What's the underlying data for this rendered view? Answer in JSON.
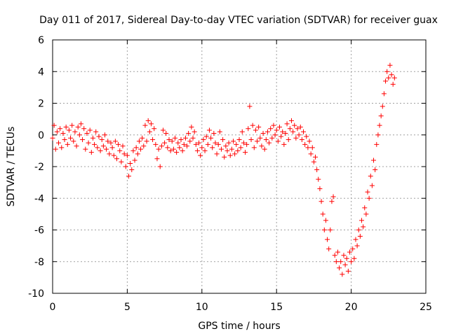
{
  "chart_data": {
    "type": "scatter",
    "title": "Day 011 of 2017, Sidereal Day-to-day VTEC variation (SDTVAR) for receiver guax",
    "xlabel": "GPS time / hours",
    "ylabel": "SDTVAR / TECUs",
    "xlim": [
      0,
      25
    ],
    "ylim": [
      -10,
      6
    ],
    "xticks": [
      "0",
      "5",
      "10",
      "15",
      "20",
      "25"
    ],
    "yticks": [
      "-10",
      "-8",
      "-6",
      "-4",
      "-2",
      "0",
      "2",
      "4",
      "6"
    ],
    "grid": true,
    "marker": "+",
    "color": "#ff0000",
    "series": [
      {
        "name": "SDTVAR",
        "points": [
          [
            0.0,
            -0.2
          ],
          [
            0.1,
            0.6
          ],
          [
            0.2,
            -0.9
          ],
          [
            0.3,
            0.2
          ],
          [
            0.4,
            -0.5
          ],
          [
            0.5,
            0.4
          ],
          [
            0.6,
            -0.8
          ],
          [
            0.7,
            0.1
          ],
          [
            0.8,
            -0.3
          ],
          [
            0.9,
            0.5
          ],
          [
            1.0,
            -0.6
          ],
          [
            1.1,
            0.3
          ],
          [
            1.2,
            -0.2
          ],
          [
            1.3,
            0.6
          ],
          [
            1.4,
            -0.4
          ],
          [
            1.5,
            0.2
          ],
          [
            1.6,
            -0.7
          ],
          [
            1.7,
            0.5
          ],
          [
            1.8,
            0.0
          ],
          [
            1.9,
            0.7
          ],
          [
            2.0,
            -0.3
          ],
          [
            2.1,
            0.4
          ],
          [
            2.2,
            -0.9
          ],
          [
            2.3,
            0.1
          ],
          [
            2.4,
            -0.5
          ],
          [
            2.5,
            0.3
          ],
          [
            2.6,
            -1.1
          ],
          [
            2.7,
            -0.2
          ],
          [
            2.8,
            -0.6
          ],
          [
            2.9,
            0.2
          ],
          [
            3.0,
            -0.8
          ],
          [
            3.1,
            -0.1
          ],
          [
            3.2,
            -1.0
          ],
          [
            3.3,
            -0.3
          ],
          [
            3.4,
            -0.7
          ],
          [
            3.5,
            0.0
          ],
          [
            3.6,
            -0.9
          ],
          [
            3.7,
            -0.4
          ],
          [
            3.8,
            -1.2
          ],
          [
            3.9,
            -0.5
          ],
          [
            4.0,
            -0.8
          ],
          [
            4.1,
            -1.3
          ],
          [
            4.2,
            -0.4
          ],
          [
            4.3,
            -1.5
          ],
          [
            4.4,
            -0.6
          ],
          [
            4.5,
            -1.0
          ],
          [
            4.6,
            -1.7
          ],
          [
            4.7,
            -0.7
          ],
          [
            4.8,
            -1.2
          ],
          [
            4.9,
            -2.0
          ],
          [
            5.0,
            -1.3
          ],
          [
            5.1,
            -2.6
          ],
          [
            5.2,
            -1.8
          ],
          [
            5.3,
            -2.2
          ],
          [
            5.4,
            -1.0
          ],
          [
            5.5,
            -1.6
          ],
          [
            5.6,
            -0.8
          ],
          [
            5.7,
            -1.2
          ],
          [
            5.8,
            -0.4
          ],
          [
            5.9,
            -0.9
          ],
          [
            6.0,
            -0.2
          ],
          [
            6.1,
            -0.7
          ],
          [
            6.2,
            0.6
          ],
          [
            6.3,
            -0.4
          ],
          [
            6.4,
            0.9
          ],
          [
            6.5,
            0.2
          ],
          [
            6.6,
            0.7
          ],
          [
            6.7,
            -0.3
          ],
          [
            6.8,
            0.4
          ],
          [
            6.9,
            -0.6
          ],
          [
            7.0,
            -1.5
          ],
          [
            7.1,
            -0.9
          ],
          [
            7.2,
            -2.0
          ],
          [
            7.3,
            -0.7
          ],
          [
            7.4,
            0.3
          ],
          [
            7.5,
            -0.5
          ],
          [
            7.6,
            0.1
          ],
          [
            7.7,
            -0.8
          ],
          [
            7.8,
            -0.3
          ],
          [
            7.9,
            -1.0
          ],
          [
            8.0,
            -0.4
          ],
          [
            8.1,
            -0.9
          ],
          [
            8.2,
            -0.2
          ],
          [
            8.3,
            -1.1
          ],
          [
            8.4,
            -0.5
          ],
          [
            8.5,
            -0.8
          ],
          [
            8.6,
            -0.3
          ],
          [
            8.7,
            -1.0
          ],
          [
            8.8,
            -0.6
          ],
          [
            8.9,
            -0.2
          ],
          [
            9.0,
            -0.7
          ],
          [
            9.1,
            0.1
          ],
          [
            9.2,
            -0.4
          ],
          [
            9.3,
            0.5
          ],
          [
            9.4,
            -0.2
          ],
          [
            9.5,
            0.2
          ],
          [
            9.6,
            -0.6
          ],
          [
            9.7,
            -1.0
          ],
          [
            9.8,
            -0.5
          ],
          [
            9.9,
            -1.3
          ],
          [
            10.0,
            -0.8
          ],
          [
            10.1,
            -0.3
          ],
          [
            10.2,
            -1.0
          ],
          [
            10.3,
            -0.1
          ],
          [
            10.4,
            -0.6
          ],
          [
            10.5,
            0.3
          ],
          [
            10.6,
            -0.2
          ],
          [
            10.7,
            -0.8
          ],
          [
            10.8,
            0.1
          ],
          [
            10.9,
            -0.5
          ],
          [
            11.0,
            -1.2
          ],
          [
            11.1,
            -0.6
          ],
          [
            11.2,
            0.2
          ],
          [
            11.3,
            -0.9
          ],
          [
            11.4,
            -0.3
          ],
          [
            11.5,
            -1.4
          ],
          [
            11.6,
            -0.7
          ],
          [
            11.7,
            -1.0
          ],
          [
            11.8,
            -0.5
          ],
          [
            11.9,
            -1.3
          ],
          [
            12.0,
            -0.9
          ],
          [
            12.1,
            -0.4
          ],
          [
            12.2,
            -1.2
          ],
          [
            12.3,
            -0.6
          ],
          [
            12.4,
            -1.0
          ],
          [
            12.5,
            -0.3
          ],
          [
            12.6,
            -0.8
          ],
          [
            12.7,
            0.2
          ],
          [
            12.8,
            -0.5
          ],
          [
            12.9,
            -1.1
          ],
          [
            13.0,
            -0.6
          ],
          [
            13.1,
            0.4
          ],
          [
            13.2,
            1.8
          ],
          [
            13.3,
            -0.3
          ],
          [
            13.4,
            0.6
          ],
          [
            13.5,
            -0.8
          ],
          [
            13.6,
            0.3
          ],
          [
            13.7,
            -0.4
          ],
          [
            13.8,
            0.5
          ],
          [
            13.9,
            -0.2
          ],
          [
            14.0,
            -0.7
          ],
          [
            14.1,
            0.1
          ],
          [
            14.2,
            -0.9
          ],
          [
            14.3,
            -0.3
          ],
          [
            14.4,
            0.2
          ],
          [
            14.5,
            -0.5
          ],
          [
            14.6,
            0.4
          ],
          [
            14.7,
            -0.2
          ],
          [
            14.8,
            0.6
          ],
          [
            14.9,
            0.0
          ],
          [
            15.0,
            0.3
          ],
          [
            15.1,
            -0.4
          ],
          [
            15.2,
            0.5
          ],
          [
            15.3,
            -0.1
          ],
          [
            15.4,
            0.2
          ],
          [
            15.5,
            -0.6
          ],
          [
            15.6,
            0.1
          ],
          [
            15.7,
            0.7
          ],
          [
            15.8,
            -0.3
          ],
          [
            15.9,
            0.4
          ],
          [
            16.0,
            0.9
          ],
          [
            16.1,
            0.2
          ],
          [
            16.2,
            0.6
          ],
          [
            16.3,
            -0.2
          ],
          [
            16.4,
            0.4
          ],
          [
            16.5,
            0.0
          ],
          [
            16.6,
            0.5
          ],
          [
            16.7,
            -0.3
          ],
          [
            16.8,
            0.2
          ],
          [
            16.9,
            -0.6
          ],
          [
            17.0,
            -0.1
          ],
          [
            17.1,
            -0.8
          ],
          [
            17.2,
            -0.4
          ],
          [
            17.3,
            -1.2
          ],
          [
            17.4,
            -0.8
          ],
          [
            17.5,
            -1.7
          ],
          [
            17.6,
            -1.4
          ],
          [
            17.7,
            -2.2
          ],
          [
            17.8,
            -2.8
          ],
          [
            17.9,
            -3.4
          ],
          [
            18.0,
            -4.2
          ],
          [
            18.1,
            -5.0
          ],
          [
            18.2,
            -6.0
          ],
          [
            18.3,
            -5.4
          ],
          [
            18.4,
            -6.6
          ],
          [
            18.5,
            -7.2
          ],
          [
            18.6,
            -6.0
          ],
          [
            18.7,
            -4.2
          ],
          [
            18.8,
            -3.9
          ],
          [
            18.9,
            -7.6
          ],
          [
            19.0,
            -8.0
          ],
          [
            19.1,
            -7.4
          ],
          [
            19.2,
            -8.4
          ],
          [
            19.3,
            -8.0
          ],
          [
            19.4,
            -8.8
          ],
          [
            19.5,
            -7.6
          ],
          [
            19.6,
            -8.2
          ],
          [
            19.7,
            -7.8
          ],
          [
            19.8,
            -8.6
          ],
          [
            19.9,
            -7.4
          ],
          [
            20.0,
            -8.0
          ],
          [
            20.1,
            -7.2
          ],
          [
            20.2,
            -7.8
          ],
          [
            20.3,
            -6.6
          ],
          [
            20.4,
            -7.0
          ],
          [
            20.5,
            -6.0
          ],
          [
            20.6,
            -6.4
          ],
          [
            20.7,
            -5.4
          ],
          [
            20.8,
            -5.8
          ],
          [
            20.9,
            -4.6
          ],
          [
            21.0,
            -5.0
          ],
          [
            21.1,
            -3.6
          ],
          [
            21.2,
            -4.0
          ],
          [
            21.3,
            -2.6
          ],
          [
            21.4,
            -3.2
          ],
          [
            21.5,
            -1.6
          ],
          [
            21.6,
            -2.2
          ],
          [
            21.7,
            -0.6
          ],
          [
            21.8,
            0.0
          ],
          [
            21.9,
            0.6
          ],
          [
            22.0,
            1.2
          ],
          [
            22.1,
            1.8
          ],
          [
            22.2,
            2.6
          ],
          [
            22.3,
            3.4
          ],
          [
            22.4,
            4.0
          ],
          [
            22.5,
            3.6
          ],
          [
            22.6,
            4.4
          ],
          [
            22.7,
            3.8
          ],
          [
            22.8,
            3.2
          ],
          [
            22.9,
            3.6
          ]
        ]
      }
    ]
  }
}
